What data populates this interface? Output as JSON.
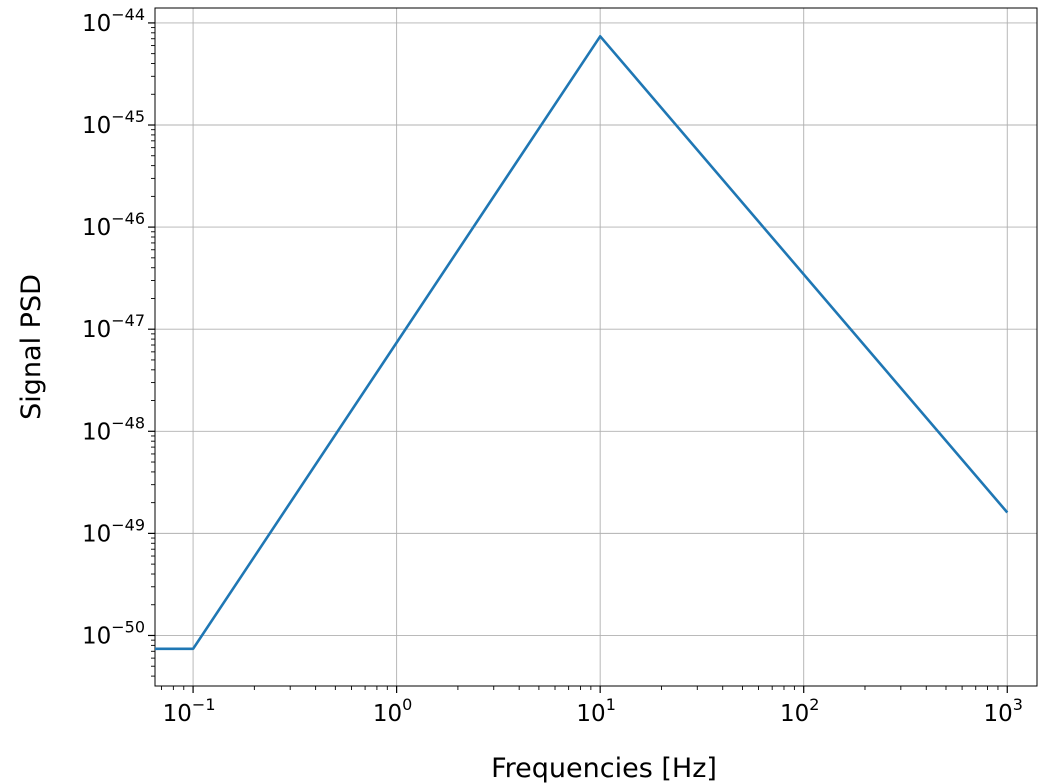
{
  "chart_data": {
    "type": "line",
    "title": "",
    "xlabel": "Frequencies [Hz]",
    "ylabel": "Signal PSD",
    "x_scale": "log",
    "y_scale": "log",
    "xlim": [
      0.065,
      1400
    ],
    "ylim": [
      3.2e-51,
      1.4e-44
    ],
    "grid": true,
    "line_color": "#1f77b4",
    "grid_color": "#b0b0b0",
    "x_ticks": [
      {
        "value": 0.1,
        "base": "10",
        "exp": "−1"
      },
      {
        "value": 1,
        "base": "10",
        "exp": "0"
      },
      {
        "value": 10,
        "base": "10",
        "exp": "1"
      },
      {
        "value": 100,
        "base": "10",
        "exp": "2"
      },
      {
        "value": 1000,
        "base": "10",
        "exp": "3"
      }
    ],
    "y_ticks": [
      {
        "value": 1e-50,
        "base": "10",
        "exp": "−50"
      },
      {
        "value": 1e-49,
        "base": "10",
        "exp": "−49"
      },
      {
        "value": 1e-48,
        "base": "10",
        "exp": "−48"
      },
      {
        "value": 1e-47,
        "base": "10",
        "exp": "−47"
      },
      {
        "value": 1e-46,
        "base": "10",
        "exp": "−46"
      },
      {
        "value": 1e-45,
        "base": "10",
        "exp": "−45"
      },
      {
        "value": 1e-44,
        "base": "10",
        "exp": "−44"
      }
    ],
    "series": [
      {
        "x": [
          0.065,
          0.1,
          10,
          1000
        ],
        "y": [
          7.4e-51,
          7.4e-51,
          7.4e-45,
          1.6e-49
        ]
      }
    ]
  }
}
